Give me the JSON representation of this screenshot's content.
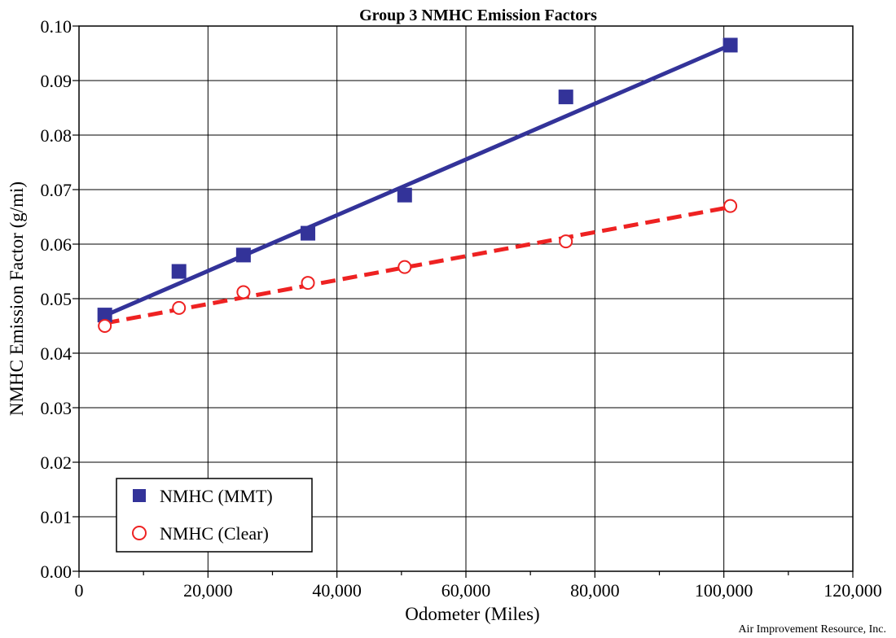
{
  "chart_data": {
    "type": "scatter",
    "title": "Group 3 NMHC Emission Factors",
    "xlabel": "Odometer (Miles)",
    "ylabel": "NMHC Emission Factor (g/mi)",
    "xlim": [
      0,
      120000
    ],
    "ylim": [
      0.0,
      0.1
    ],
    "x_ticks": [
      0,
      20000,
      40000,
      60000,
      80000,
      100000,
      120000
    ],
    "x_tick_labels": [
      "0",
      "20,000",
      "40,000",
      "60,000",
      "80,000",
      "100,000",
      "120,000"
    ],
    "y_ticks": [
      0.0,
      0.01,
      0.02,
      0.03,
      0.04,
      0.05,
      0.06,
      0.07,
      0.08,
      0.09,
      0.1
    ],
    "y_tick_labels": [
      "0.00",
      "0.01",
      "0.02",
      "0.03",
      "0.04",
      "0.05",
      "0.06",
      "0.07",
      "0.08",
      "0.09",
      "0.10"
    ],
    "grid": true,
    "legend_position": "bottom-left",
    "series": [
      {
        "name": "NMHC (MMT)",
        "marker": "filled-square",
        "color": "#333399",
        "x": [
          4000,
          15500,
          25500,
          35500,
          50500,
          75500,
          101000
        ],
        "y": [
          0.047,
          0.055,
          0.058,
          0.062,
          0.069,
          0.087,
          0.0965
        ],
        "trend": {
          "style": "solid",
          "x": [
            4000,
            101000
          ],
          "y": [
            0.0469,
            0.0965
          ]
        }
      },
      {
        "name": "NMHC (Clear)",
        "marker": "open-circle",
        "color": "#ee2222",
        "x": [
          4000,
          15500,
          25500,
          35500,
          50500,
          75500,
          101000
        ],
        "y": [
          0.045,
          0.0483,
          0.0512,
          0.0529,
          0.0558,
          0.0605,
          0.067
        ],
        "trend": {
          "style": "dashed",
          "x": [
            4000,
            101000
          ],
          "y": [
            0.0455,
            0.0668
          ]
        }
      }
    ],
    "credit": "Air Improvement Resource, Inc."
  }
}
